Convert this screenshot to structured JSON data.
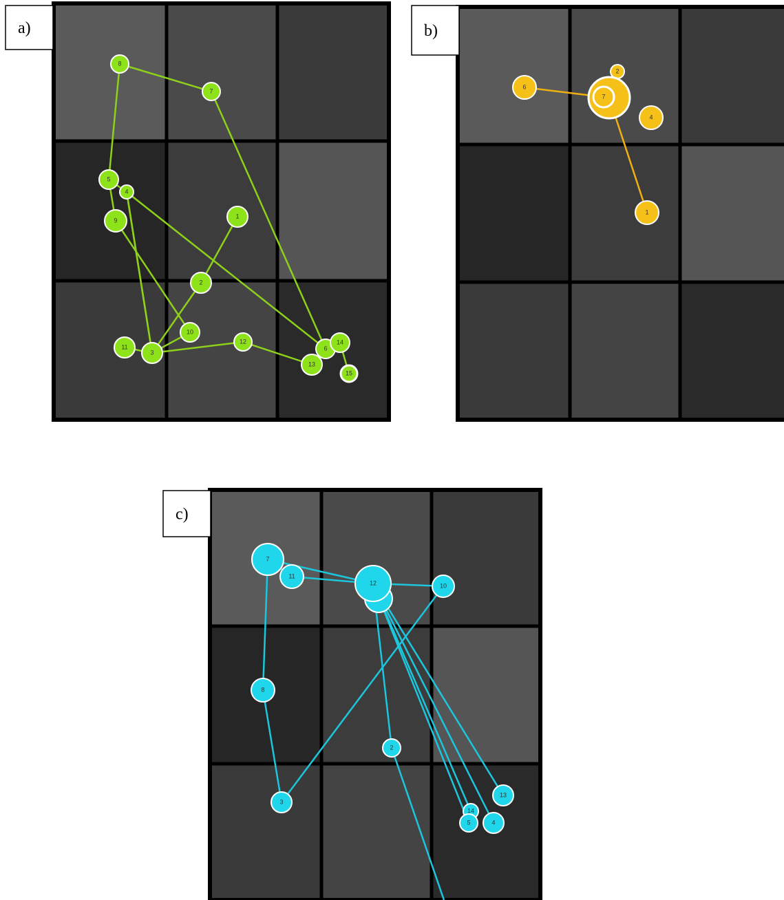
{
  "panels": [
    {
      "label": "a)",
      "fixations": [
        "8",
        "7",
        "5",
        "4",
        "1",
        "9",
        "2",
        "10",
        "11",
        "3",
        "12",
        "6",
        "14",
        "13",
        "15"
      ]
    },
    {
      "label": "b)",
      "fixations": [
        "6",
        "2",
        "7",
        "4",
        "1"
      ]
    },
    {
      "label": "c)",
      "fixations": [
        "7",
        "11",
        "12",
        "10",
        "8",
        "2",
        "3",
        "13",
        "14",
        "5",
        "4"
      ]
    }
  ]
}
